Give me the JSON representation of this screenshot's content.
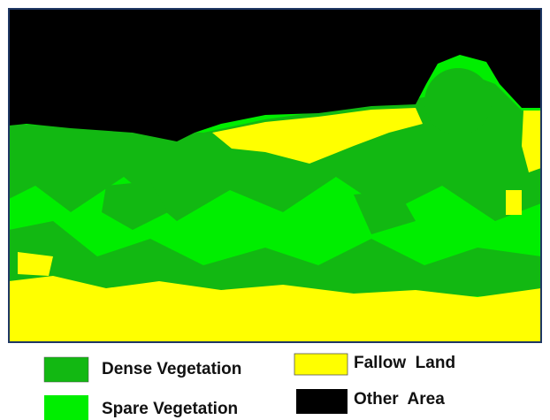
{
  "legend": {
    "items": [
      {
        "label": "Dense Vegetation"
      },
      {
        "label": "Fallow  Land"
      },
      {
        "label": "Spare Vegetation"
      },
      {
        "label": "Other  Area"
      }
    ]
  }
}
